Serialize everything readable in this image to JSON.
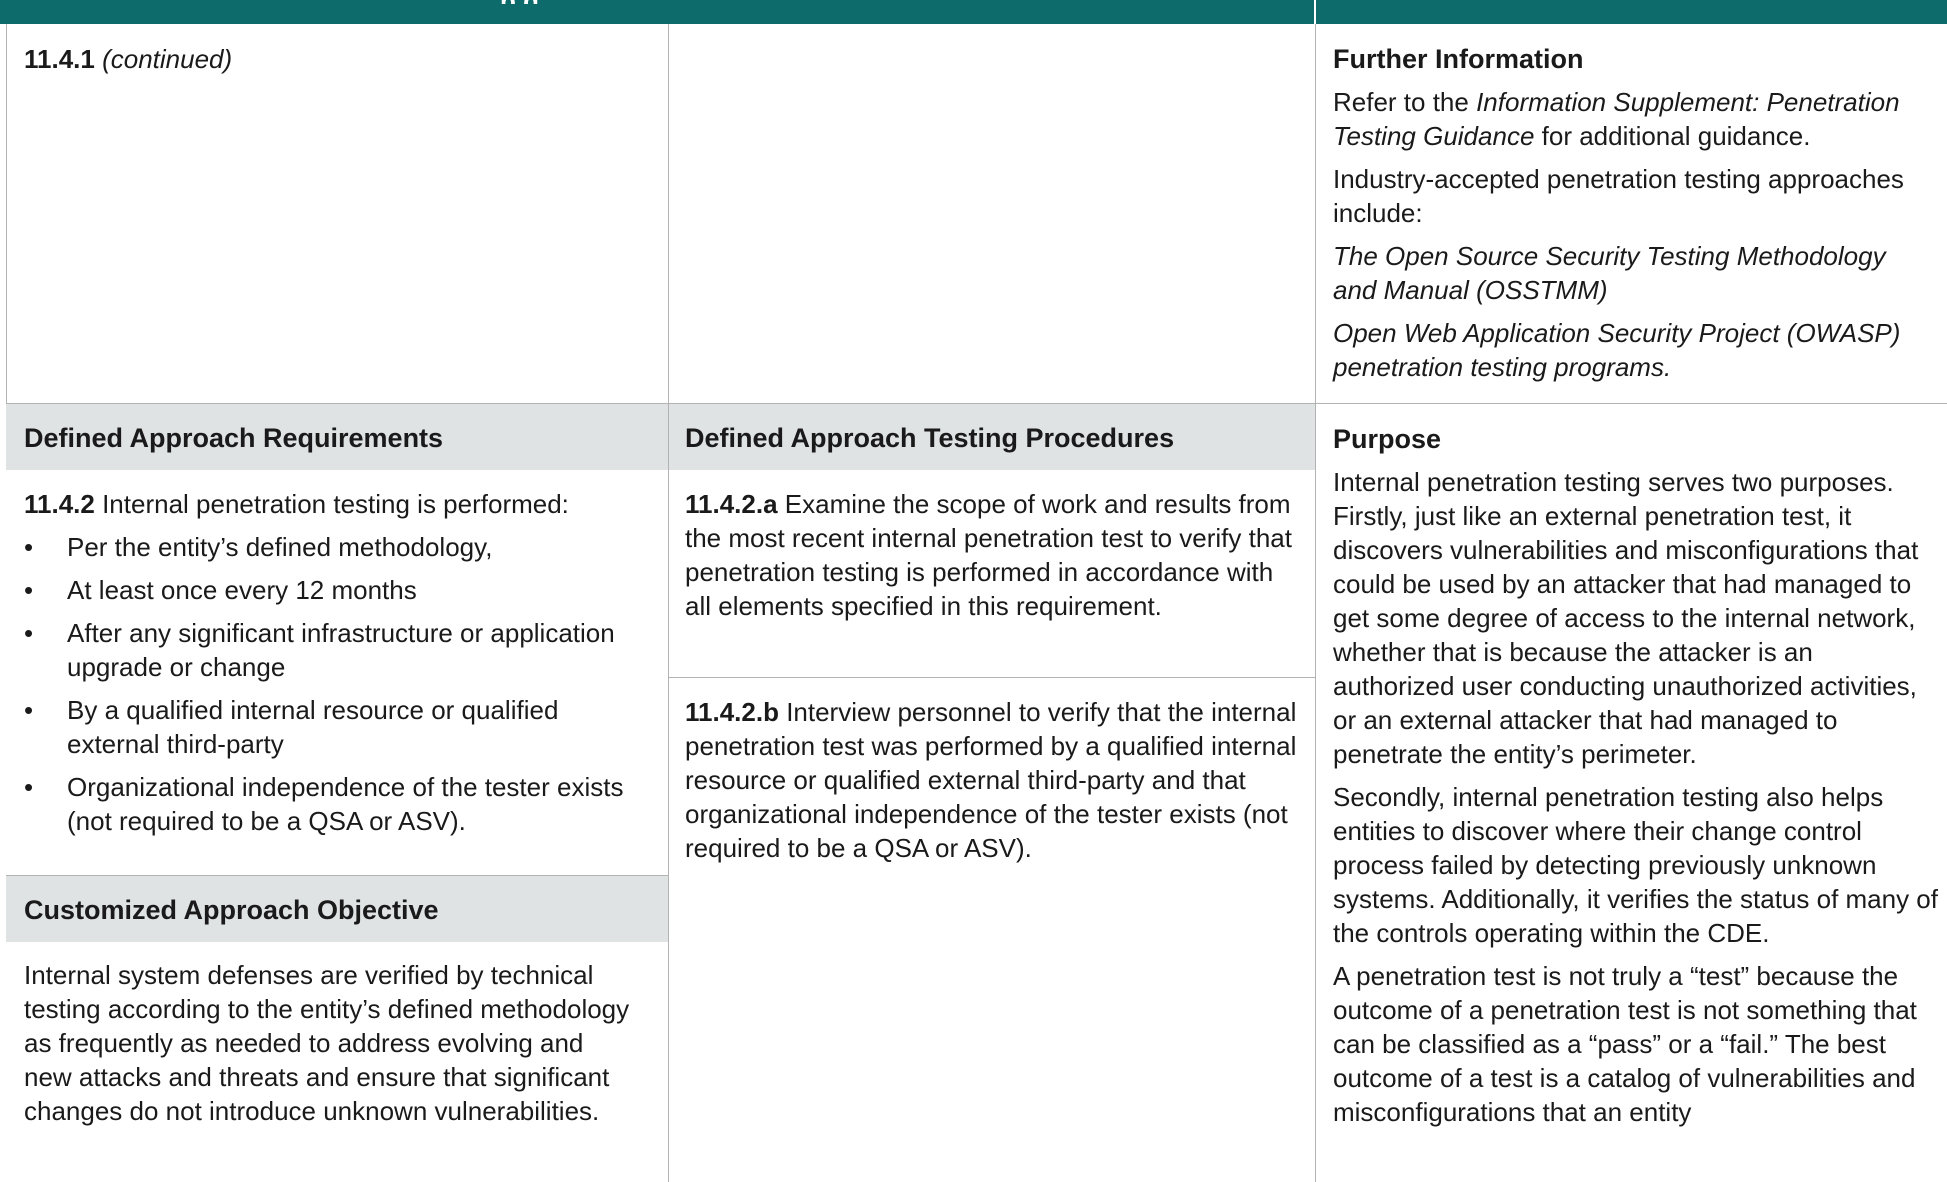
{
  "top_bar": {
    "partial_title": "p        g"
  },
  "continued_row": {
    "ref": "11.4.1",
    "ref_note": "(continued)",
    "further_info": {
      "heading": "Further Information",
      "refer_prefix": "Refer to the ",
      "refer_doc": "Information Supplement: Penetration Testing Guidance",
      "refer_suffix": " for additional guidance.",
      "approaches_intro": "Industry-accepted penetration testing approaches include:",
      "approaches": [
        "The Open Source Security Testing Methodology and Manual (OSSTMM)",
        "Open Web Application Security Project (OWASP) penetration testing programs."
      ]
    }
  },
  "requirement": {
    "header": "Defined Approach Requirements",
    "id": "11.4.2",
    "text": " Internal penetration testing is performed:",
    "bullets": [
      "Per the entity’s defined methodology,",
      "At least once every 12 months",
      "After any significant infrastructure or application upgrade or change",
      "By a qualified internal resource or qualified external third-party",
      "Organizational independence of the tester exists (not required to be a QSA or ASV)."
    ]
  },
  "customized": {
    "header": "Customized Approach Objective",
    "text": "Internal system defenses are verified by technical testing according to the entity’s defined methodology as frequently as needed to address evolving and new attacks and threats and ensure that significant changes do not introduce unknown vulnerabilities."
  },
  "testing": {
    "header": "Defined Approach Testing Procedures",
    "procedures": [
      {
        "id": "11.4.2.a",
        "text": " Examine the scope of work and results from the most recent internal penetration test to verify that penetration testing is performed in accordance with all elements specified in this requirement."
      },
      {
        "id": "11.4.2.b",
        "text": " Interview personnel to verify that the internal penetration test was performed by a qualified internal resource or qualified external third-party and that organizational independence of the tester exists (not required to be a QSA or ASV)."
      }
    ]
  },
  "guidance": {
    "heading": "Purpose",
    "paragraphs": [
      "Internal penetration testing serves two purposes. Firstly, just like an external penetration test, it discovers vulnerabilities and misconfigurations that could be used by an attacker that had managed to get some degree of access to the internal network, whether that is because the attacker is an authorized user conducting unauthorized activities, or an external attacker that had managed to penetrate the entity’s perimeter.",
      "Secondly, internal penetration testing also helps entities to discover where their change control process failed by detecting previously unknown systems. Additionally, it verifies the status of many of the controls operating within the CDE.",
      "A penetration test is not truly a “test” because the outcome of a penetration test is not something that can be classified as a “pass” or a “fail.” The best outcome of a test is a catalog of vulnerabilities and misconfigurations that an entity"
    ]
  },
  "colors": {
    "header_bar": "#0e6b6b",
    "section_header_bg": "#e0e3e4",
    "rule": "#b3b3b3"
  }
}
